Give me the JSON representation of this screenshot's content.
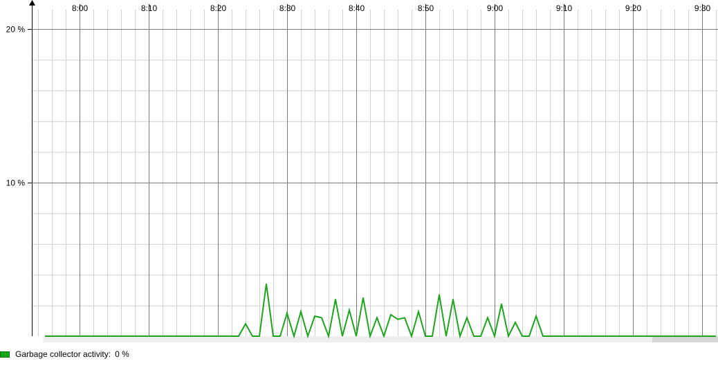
{
  "chart_data": {
    "type": "line",
    "x_ticks": [
      "8:00",
      "8:10",
      "8:20",
      "8:30",
      "8:40",
      "8:50",
      "9:00",
      "9:10",
      "9:20",
      "9:30"
    ],
    "y_ticks": [
      "10 %",
      "20 %"
    ],
    "ylim": [
      0,
      20
    ],
    "grid": true,
    "series": [
      {
        "name": "Garbage collector activity:",
        "color": "#1aa51a",
        "x_minutes_from_8_00": [
          -5,
          23,
          24,
          25,
          26,
          27,
          28,
          29,
          30,
          31,
          32,
          33,
          34,
          35,
          36,
          37,
          38,
          39,
          40,
          41,
          42,
          43,
          44,
          45,
          46,
          47,
          48,
          49,
          50,
          51,
          52,
          53,
          54,
          55,
          56,
          57,
          58,
          59,
          60,
          61,
          62,
          63,
          64,
          65,
          66,
          67,
          68,
          92
        ],
        "y_values": [
          0,
          0,
          0.8,
          0,
          0,
          3.4,
          0,
          0,
          1.5,
          0,
          1.6,
          0,
          1.3,
          1.2,
          0,
          2.4,
          0,
          1.7,
          0,
          2.5,
          0,
          1.2,
          0,
          1.4,
          1.1,
          1.2,
          0,
          1.6,
          0,
          0,
          2.7,
          0,
          2.4,
          0,
          1.2,
          0,
          0,
          1.2,
          0,
          2.1,
          0,
          0.9,
          0,
          0,
          1.3,
          0,
          0,
          0
        ]
      }
    ]
  },
  "legend": {
    "label": "Garbage collector activity:",
    "value": "0 %",
    "color": "#1aa51a"
  }
}
